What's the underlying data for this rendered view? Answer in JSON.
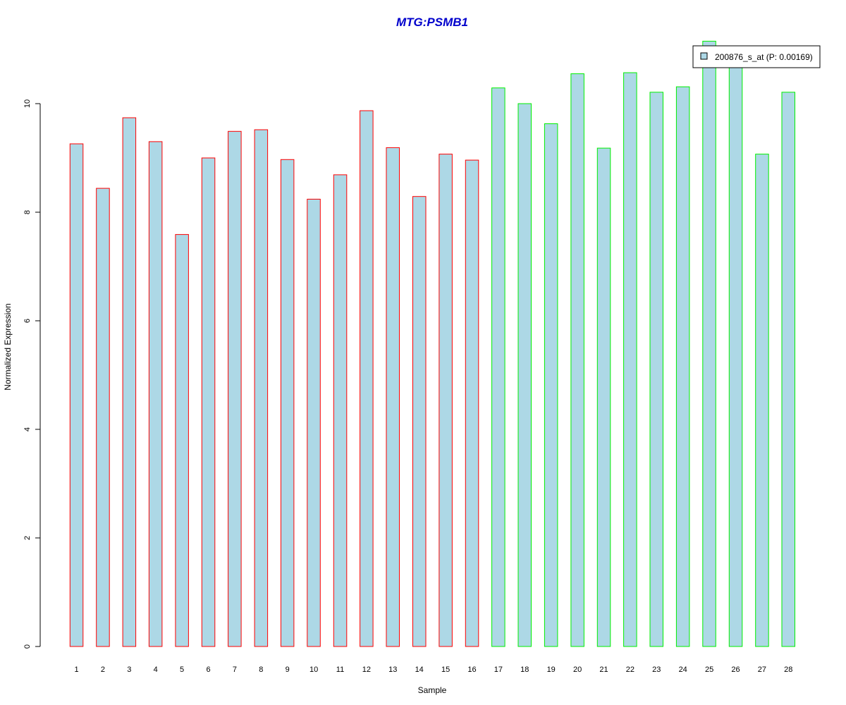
{
  "chart_data": {
    "type": "bar",
    "title": "MTG:PSMB1",
    "xlabel": "Sample",
    "ylabel": "Normalized Expression",
    "categories": [
      "1",
      "2",
      "3",
      "4",
      "5",
      "6",
      "7",
      "8",
      "9",
      "10",
      "11",
      "12",
      "13",
      "14",
      "15",
      "16",
      "17",
      "18",
      "19",
      "20",
      "21",
      "22",
      "23",
      "24",
      "25",
      "26",
      "27",
      "28"
    ],
    "series": [
      {
        "name": "200876_s_at (P: 0.00169)",
        "values": [
          9.26,
          8.44,
          9.74,
          9.3,
          7.59,
          9.0,
          9.49,
          9.52,
          8.97,
          8.24,
          8.69,
          9.87,
          9.19,
          8.29,
          9.07,
          8.96,
          10.29,
          10.0,
          9.63,
          10.55,
          9.18,
          10.57,
          10.21,
          10.31,
          11.15,
          10.83,
          9.07,
          10.21
        ]
      }
    ],
    "group_outline_colors": [
      "#ff0000",
      "#ff0000",
      "#ff0000",
      "#ff0000",
      "#ff0000",
      "#ff0000",
      "#ff0000",
      "#ff0000",
      "#ff0000",
      "#ff0000",
      "#ff0000",
      "#ff0000",
      "#ff0000",
      "#ff0000",
      "#ff0000",
      "#ff0000",
      "#00ee00",
      "#00ee00",
      "#00ee00",
      "#00ee00",
      "#00ee00",
      "#00ee00",
      "#00ee00",
      "#00ee00",
      "#00ee00",
      "#00ee00",
      "#00ee00",
      "#00ee00"
    ],
    "bar_fill": "#add8e6",
    "title_color": "#0000cc",
    "y_ticks": [
      0,
      2,
      4,
      6,
      8,
      10
    ],
    "ylim": [
      0,
      11.2
    ],
    "grid": false,
    "legend_position": "top-right"
  }
}
